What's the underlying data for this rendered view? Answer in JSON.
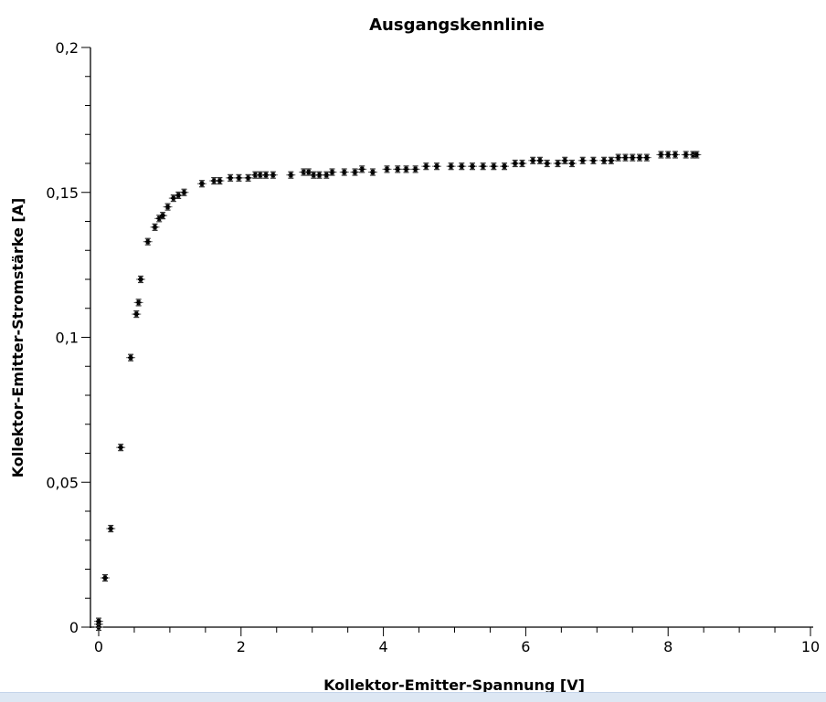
{
  "chart_data": {
    "type": "scatter",
    "title": "Ausgangskennlinie",
    "xlabel": "Kollektor-Emitter-Spannung [V]",
    "ylabel": "Kollektor-Emitter-Stromstärke [A]",
    "xlim": [
      0,
      10
    ],
    "ylim": [
      0,
      0.2
    ],
    "xticks": [
      0,
      2,
      4,
      6,
      8,
      10
    ],
    "xtick_labels": [
      "0",
      "2",
      "4",
      "6",
      "8",
      "10"
    ],
    "yticks": [
      0,
      0.05,
      0.1,
      0.15,
      0.2
    ],
    "ytick_labels": [
      "0",
      "0,05",
      "0,1",
      "0,15",
      "0,2"
    ],
    "grid": false,
    "marker": "asterisk",
    "error_bars": true,
    "color": "#000000",
    "x": [
      0,
      0,
      0,
      0.09,
      0.17,
      0.31,
      0.45,
      0.53,
      0.56,
      0.59,
      0.69,
      0.79,
      0.85,
      0.9,
      0.97,
      1.05,
      1.12,
      1.2,
      1.45,
      1.62,
      1.7,
      1.85,
      1.97,
      2.1,
      2.2,
      2.27,
      2.35,
      2.45,
      2.7,
      2.88,
      2.95,
      3.02,
      3.1,
      3.2,
      3.28,
      3.45,
      3.6,
      3.7,
      3.85,
      4.05,
      4.2,
      4.32,
      4.45,
      4.6,
      4.75,
      4.95,
      5.1,
      5.25,
      5.4,
      5.55,
      5.7,
      5.85,
      5.95,
      6.1,
      6.2,
      6.3,
      6.45,
      6.55,
      6.65,
      6.8,
      6.95,
      7.1,
      7.2,
      7.3,
      7.4,
      7.5,
      7.6,
      7.7,
      7.9,
      8.0,
      8.1,
      8.25,
      8.35,
      8.4
    ],
    "y": [
      0,
      0.001,
      0.002,
      0.017,
      0.034,
      0.062,
      0.093,
      0.108,
      0.112,
      0.12,
      0.133,
      0.138,
      0.141,
      0.142,
      0.145,
      0.148,
      0.149,
      0.15,
      0.153,
      0.154,
      0.154,
      0.155,
      0.155,
      0.155,
      0.156,
      0.156,
      0.156,
      0.156,
      0.156,
      0.157,
      0.157,
      0.156,
      0.156,
      0.156,
      0.157,
      0.157,
      0.157,
      0.158,
      0.157,
      0.158,
      0.158,
      0.158,
      0.158,
      0.159,
      0.159,
      0.159,
      0.159,
      0.159,
      0.159,
      0.159,
      0.159,
      0.16,
      0.16,
      0.161,
      0.161,
      0.16,
      0.16,
      0.161,
      0.16,
      0.161,
      0.161,
      0.161,
      0.161,
      0.162,
      0.162,
      0.162,
      0.162,
      0.162,
      0.163,
      0.163,
      0.163,
      0.163,
      0.163,
      0.163
    ]
  }
}
